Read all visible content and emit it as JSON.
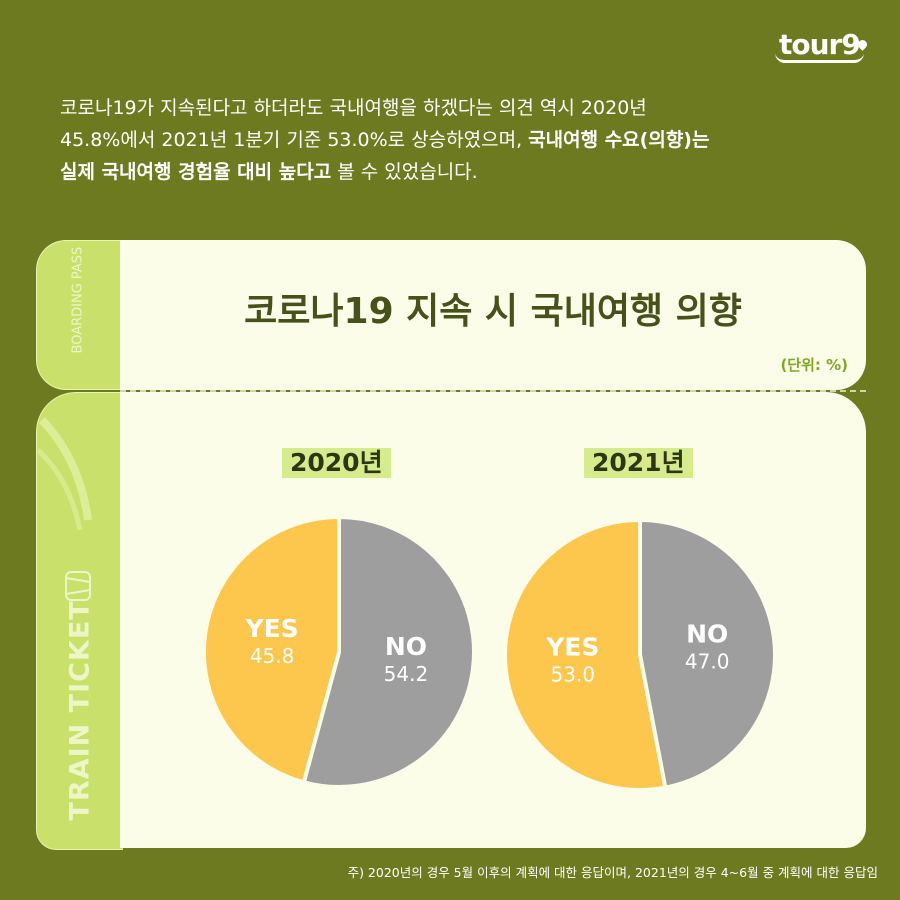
{
  "logo": "tour9",
  "intro": {
    "line1": "코로나19가 지속된다고 하더라도 국내여행을 하겠다는 의견 역시 2020년",
    "line2a": "45.8%에서 2021년 1분기 기준 53.0%로 상승하였으며, ",
    "line2b": "국내여행 수요(의향)는",
    "line3a": "실제 국내여행 경험율 대비 높다고",
    "line3b": " 볼 수 있었습니다."
  },
  "ticket": {
    "boarding": "BOARDING PASS",
    "train": "TRAIN TICKET"
  },
  "colors": {
    "background": "#6e7a1f",
    "yes": "#fdc64c",
    "no": "#9e9e9e",
    "strip": "#c9e06a"
  },
  "chart_data": [
    {
      "type": "pie",
      "title": "2020년",
      "categories": [
        "YES",
        "NO"
      ],
      "values": [
        45.8,
        54.2
      ]
    },
    {
      "type": "pie",
      "title": "2021년",
      "categories": [
        "YES",
        "NO"
      ],
      "values": [
        53.0,
        47.0
      ]
    }
  ],
  "chart_title": "코로나19 지속 시 국내여행 의향",
  "unit": "(단위: %)",
  "footnote": "주) 2020년의 경우 5월 이후의 계획에 대한 응답이며, 2021년의 경우 4~6월 중 계획에 대한 응답임"
}
